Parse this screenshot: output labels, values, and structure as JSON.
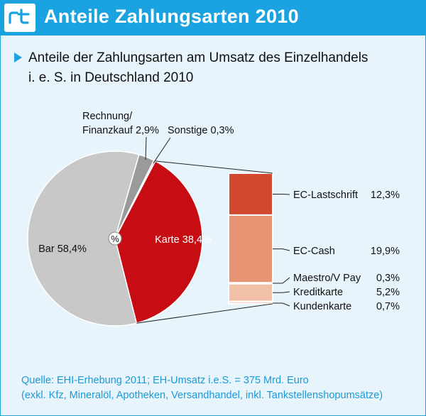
{
  "header": {
    "logo_text": "rt",
    "title": "Anteile Zahlungsarten 2010"
  },
  "subtitle_line1": "Anteile der Zahlungsarten am Umsatz des Einzelhandels",
  "subtitle_line2": "i. e. S. in Deutschland 2010",
  "source_line1": "Quelle: EHI-Erhebung 2011; EH-Umsatz i.e.S. = 375 Mrd. Euro",
  "source_line2": "(exkl. Kfz, Mineralöl, Apotheken, Versandhandel, inkl. Tankstellenshopumsätze)",
  "colors": {
    "accent": "#1aa3e0",
    "bar_slice": "#c8c8c8",
    "karte_slice": "#c70d13",
    "rechnung_slice": "#9a9a9a",
    "sonstige_slice": "#d0d0d0",
    "ec_lastschrift": "#d4482f",
    "ec_cash": "#e59371",
    "kreditkarte": "#f2c0a6",
    "small_segments": "#f6d8c8"
  },
  "chart_data": {
    "type": "pie",
    "center_symbol": "%",
    "slices": [
      {
        "name": "Karte",
        "value": 38.4,
        "label": "Karte 38,4%"
      },
      {
        "name": "Bar",
        "value": 58.4,
        "label": "Bar 58,4%"
      },
      {
        "name": "Rechnung/ Finanzkauf",
        "value": 2.9,
        "label_line1": "Rechnung/",
        "label_line2": "Finanzkauf 2,9%"
      },
      {
        "name": "Sonstige",
        "value": 0.3,
        "label": "Sonstige 0,3%"
      }
    ],
    "breakdown": {
      "of": "Karte",
      "items": [
        {
          "name": "EC-Lastschrift",
          "value": 12.3,
          "label": "EC-Lastschrift",
          "value_label": "12,3%"
        },
        {
          "name": "EC-Cash",
          "value": 19.9,
          "label": "EC-Cash",
          "value_label": "19,9%"
        },
        {
          "name": "Maestro/V Pay",
          "value": 0.3,
          "label": "Maestro/V Pay",
          "value_label": "0,3%"
        },
        {
          "name": "Kreditkarte",
          "value": 5.2,
          "label": "Kreditkarte",
          "value_label": "5,2%"
        },
        {
          "name": "Kundenkarte",
          "value": 0.7,
          "label": "Kundenkarte",
          "value_label": "0,7%"
        }
      ]
    }
  }
}
